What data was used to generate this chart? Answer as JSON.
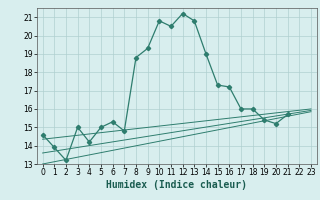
{
  "xlabel": "Humidex (Indice chaleur)",
  "ylabel": "",
  "x": [
    0,
    1,
    2,
    3,
    4,
    5,
    6,
    7,
    8,
    9,
    10,
    11,
    12,
    13,
    14,
    15,
    16,
    17,
    18,
    19,
    20,
    21,
    22,
    23
  ],
  "y_main": [
    14.6,
    13.9,
    13.2,
    15.0,
    14.2,
    15.0,
    15.3,
    14.8,
    18.8,
    19.3,
    20.8,
    20.5,
    21.2,
    20.8,
    19.0,
    17.3,
    17.2,
    16.0,
    16.0,
    15.4,
    15.2,
    15.7,
    null,
    null
  ],
  "ylim": [
    13,
    21.5
  ],
  "xlim": [
    -0.5,
    23.5
  ],
  "line_color": "#2e7d6e",
  "bg_color": "#d8eeee",
  "grid_color": "#b0d0d0",
  "tick_fontsize": 5.5,
  "label_fontsize": 7.0,
  "trend1_y": [
    13.0,
    15.85
  ],
  "trend2_y": [
    13.6,
    15.92
  ],
  "trend3_y": [
    14.35,
    16.0
  ],
  "yticks": [
    13,
    14,
    15,
    16,
    17,
    18,
    19,
    20,
    21
  ],
  "xticks": [
    0,
    1,
    2,
    3,
    4,
    5,
    6,
    7,
    8,
    9,
    10,
    11,
    12,
    13,
    14,
    15,
    16,
    17,
    18,
    19,
    20,
    21,
    22,
    23
  ],
  "xtick_labels": [
    "0",
    "1",
    "2",
    "3",
    "4",
    "5",
    "6",
    "7",
    "8",
    "9",
    "10",
    "11",
    "12",
    "13",
    "14",
    "15",
    "16",
    "17",
    "18",
    "19",
    "20",
    "21",
    "22",
    "23"
  ]
}
